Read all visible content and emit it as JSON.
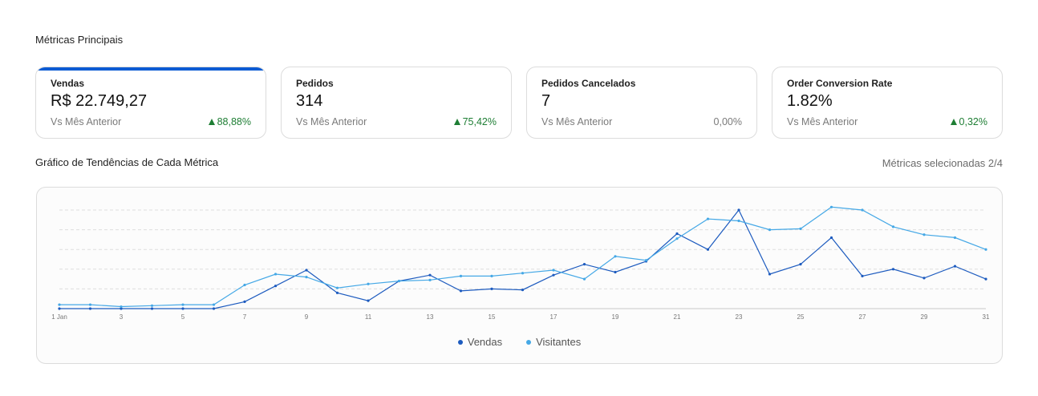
{
  "header": {
    "main_title": "Métricas Principais",
    "trend_title": "Gráfico de Tendências de Cada Métrica",
    "selected_count": "Métricas selecionadas 2/4"
  },
  "cards": [
    {
      "label": "Vendas",
      "value": "R$ 22.749,27",
      "compare": "Vs Mês Anterior",
      "change": "88,88%",
      "trend": "up"
    },
    {
      "label": "Pedidos",
      "value": "314",
      "compare": "Vs Mês Anterior",
      "change": "75,42%",
      "trend": "up"
    },
    {
      "label": "Pedidos Cancelados",
      "value": "7",
      "compare": "Vs Mês Anterior",
      "change": "0,00%",
      "trend": "neutral"
    },
    {
      "label": "Order Conversion Rate",
      "value": "1.82%",
      "compare": "Vs Mês Anterior",
      "change": "0,32%",
      "trend": "up"
    }
  ],
  "colors": {
    "vendas": "#1d5bbf",
    "visitantes": "#45a8e6",
    "up": "#1e7e34",
    "active_bar": "#0b5bd3"
  },
  "chart_data": {
    "type": "line",
    "x": [
      1,
      2,
      3,
      4,
      5,
      6,
      7,
      8,
      9,
      10,
      11,
      12,
      13,
      14,
      15,
      16,
      17,
      18,
      19,
      20,
      21,
      22,
      23,
      24,
      25,
      26,
      27,
      28,
      29,
      30,
      31
    ],
    "x_tick_labels": [
      "1 Jan",
      "3",
      "5",
      "7",
      "9",
      "11",
      "13",
      "15",
      "17",
      "19",
      "21",
      "23",
      "25",
      "27",
      "29",
      "31"
    ],
    "x_tick_values": [
      1,
      3,
      5,
      7,
      9,
      11,
      13,
      15,
      17,
      19,
      21,
      23,
      25,
      27,
      29,
      31
    ],
    "ylim": [
      0,
      100
    ],
    "grid": true,
    "legend_position": "bottom",
    "series": [
      {
        "name": "Vendas",
        "values": [
          0,
          0,
          0,
          0,
          0,
          0,
          7,
          23,
          39,
          16,
          8,
          28,
          34,
          18,
          20,
          19,
          34,
          45,
          37,
          48,
          76,
          60,
          100,
          35,
          45,
          72,
          33,
          40,
          31,
          43,
          30
        ]
      },
      {
        "name": "Visitantes",
        "values": [
          4,
          4,
          2,
          3,
          4,
          4,
          24,
          35,
          32,
          21,
          25,
          28,
          29,
          33,
          33,
          36,
          39,
          30,
          53,
          49,
          71,
          91,
          89,
          80,
          81,
          103,
          100,
          83,
          75,
          72,
          60
        ]
      }
    ]
  }
}
